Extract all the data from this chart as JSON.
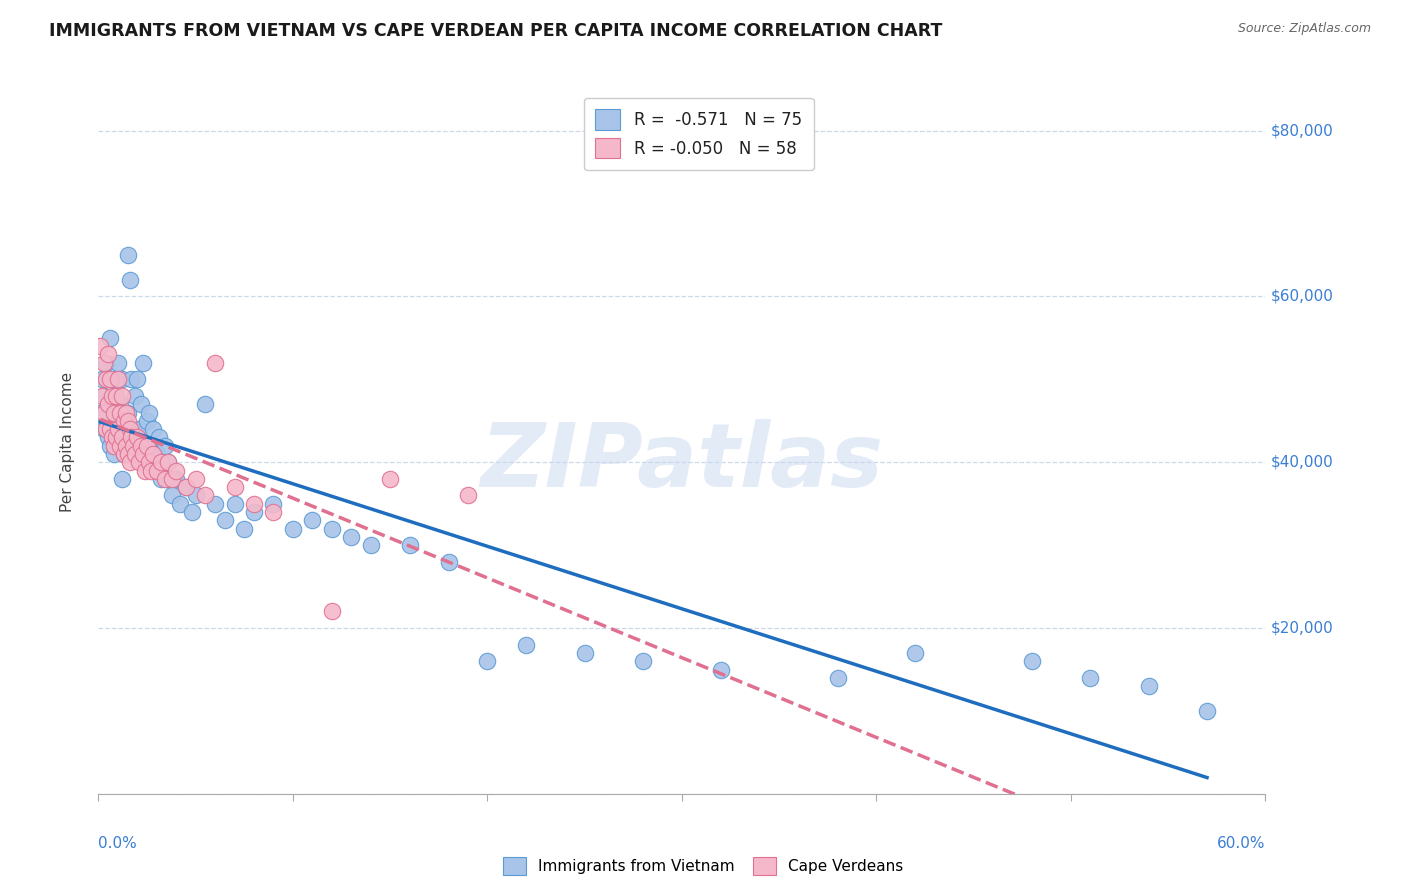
{
  "title": "IMMIGRANTS FROM VIETNAM VS CAPE VERDEAN PER CAPITA INCOME CORRELATION CHART",
  "source": "Source: ZipAtlas.com",
  "ylabel": "Per Capita Income",
  "xlim": [
    0.0,
    0.6
  ],
  "ylim": [
    0,
    85000
  ],
  "legend_blue_label": "R =  -0.571   N = 75",
  "legend_pink_label": "R = -0.050   N = 58",
  "watermark": "ZIPatlas",
  "blue_scatter_color": "#a8c4e8",
  "blue_edge_color": "#5b9bd5",
  "pink_scatter_color": "#f4b8ca",
  "pink_edge_color": "#e07090",
  "blue_line_color": "#1f6dbf",
  "pink_line_color": "#e07090",
  "viet_x": [
    0.001,
    0.002,
    0.003,
    0.003,
    0.004,
    0.005,
    0.005,
    0.006,
    0.006,
    0.007,
    0.007,
    0.008,
    0.008,
    0.009,
    0.009,
    0.01,
    0.01,
    0.011,
    0.011,
    0.012,
    0.012,
    0.013,
    0.013,
    0.014,
    0.015,
    0.015,
    0.016,
    0.017,
    0.018,
    0.019,
    0.02,
    0.021,
    0.022,
    0.023,
    0.025,
    0.026,
    0.027,
    0.028,
    0.03,
    0.031,
    0.032,
    0.034,
    0.035,
    0.036,
    0.038,
    0.04,
    0.042,
    0.045,
    0.048,
    0.05,
    0.055,
    0.06,
    0.065,
    0.07,
    0.075,
    0.08,
    0.09,
    0.1,
    0.11,
    0.12,
    0.13,
    0.14,
    0.16,
    0.18,
    0.2,
    0.22,
    0.25,
    0.28,
    0.32,
    0.38,
    0.42,
    0.48,
    0.51,
    0.54,
    0.57
  ],
  "viet_y": [
    46000,
    50000,
    48000,
    44000,
    52000,
    43000,
    47000,
    55000,
    42000,
    50000,
    44000,
    48000,
    41000,
    46000,
    43000,
    52000,
    44000,
    47000,
    42000,
    50000,
    38000,
    45000,
    41000,
    43000,
    65000,
    46000,
    62000,
    50000,
    44000,
    48000,
    50000,
    44000,
    47000,
    52000,
    45000,
    46000,
    42000,
    44000,
    41000,
    43000,
    38000,
    42000,
    38000,
    40000,
    36000,
    38000,
    35000,
    37000,
    34000,
    36000,
    47000,
    35000,
    33000,
    35000,
    32000,
    34000,
    35000,
    32000,
    33000,
    32000,
    31000,
    30000,
    30000,
    28000,
    16000,
    18000,
    17000,
    16000,
    15000,
    14000,
    17000,
    16000,
    14000,
    13000,
    10000
  ],
  "cape_x": [
    0.001,
    0.002,
    0.003,
    0.003,
    0.004,
    0.004,
    0.005,
    0.005,
    0.006,
    0.006,
    0.007,
    0.007,
    0.008,
    0.008,
    0.009,
    0.009,
    0.01,
    0.01,
    0.011,
    0.011,
    0.012,
    0.012,
    0.013,
    0.013,
    0.014,
    0.014,
    0.015,
    0.015,
    0.016,
    0.016,
    0.017,
    0.018,
    0.019,
    0.02,
    0.021,
    0.022,
    0.023,
    0.024,
    0.025,
    0.026,
    0.027,
    0.028,
    0.03,
    0.032,
    0.034,
    0.036,
    0.038,
    0.04,
    0.045,
    0.05,
    0.055,
    0.06,
    0.07,
    0.08,
    0.09,
    0.12,
    0.15,
    0.19
  ],
  "cape_y": [
    54000,
    48000,
    52000,
    46000,
    50000,
    44000,
    53000,
    47000,
    50000,
    44000,
    48000,
    43000,
    46000,
    42000,
    48000,
    43000,
    50000,
    44000,
    46000,
    42000,
    48000,
    43000,
    45000,
    41000,
    46000,
    42000,
    45000,
    41000,
    44000,
    40000,
    43000,
    42000,
    41000,
    43000,
    40000,
    42000,
    41000,
    39000,
    42000,
    40000,
    39000,
    41000,
    39000,
    40000,
    38000,
    40000,
    38000,
    39000,
    37000,
    38000,
    36000,
    52000,
    37000,
    35000,
    34000,
    22000,
    38000,
    36000
  ]
}
